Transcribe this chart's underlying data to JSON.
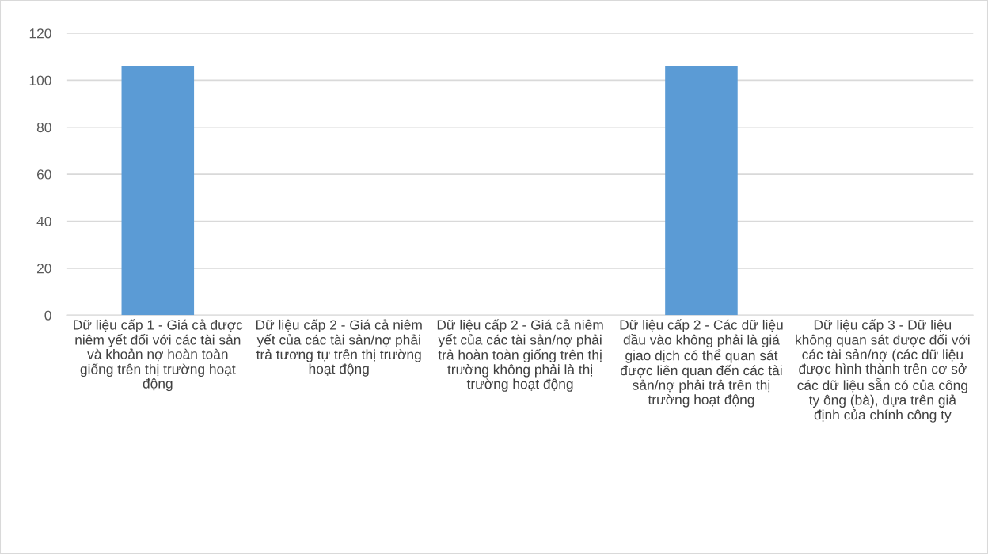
{
  "chart_data": {
    "type": "bar",
    "categories": [
      "Dữ liệu cấp 1 - Giá cả được niêm yết đối với các tài sản và khoản nợ hoàn toàn giống trên thị trường hoạt động",
      "Dữ liệu cấp 2 - Giá cả niêm yết của các tài sản/nợ phải trả tương tự trên thị trường hoạt động",
      "Dữ liệu cấp 2 - Giá cả niêm yết của các tài sản/nợ phải trả hoàn toàn giống trên thị trường không phải là thị trường hoạt động",
      "Dữ liệu cấp 2 - Các dữ liệu đầu vào không phải là giá giao dịch có thể quan sát được liên quan đến các tài sản/nợ phải trả trên thị trường hoạt động",
      "Dữ liệu cấp 3 - Dữ liệu không quan sát được đối với các tài sản/nợ (các dữ liệu được hình thành trên cơ sở các dữ liệu sẵn có của công ty ông (bà), dựa trên giả định của chính công ty"
    ],
    "values": [
      106,
      0,
      0,
      106,
      0
    ],
    "color": "#5b9bd5",
    "ylim": [
      0,
      120
    ],
    "yticks": [
      0,
      20,
      40,
      60,
      80,
      100,
      120
    ],
    "grid": "y"
  }
}
